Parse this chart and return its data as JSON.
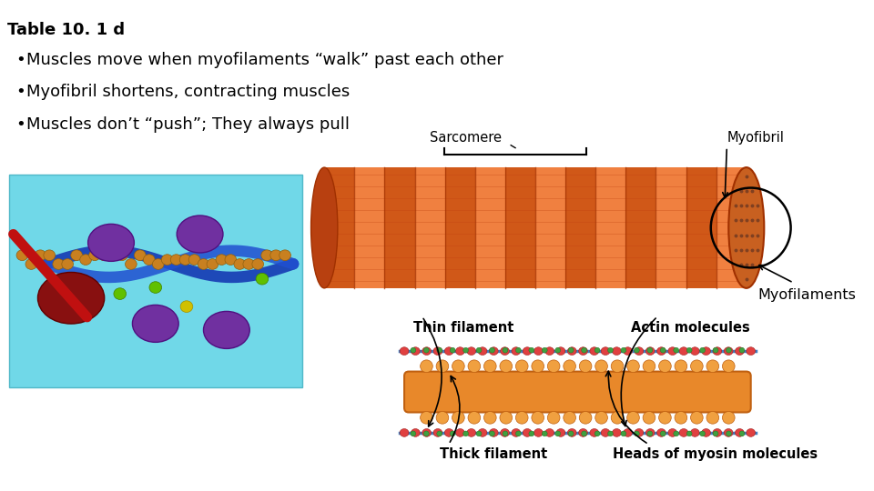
{
  "title": "Table 10. 1 d",
  "bullet1": "Muscles move when myofilaments “walk” past each other",
  "bullet2": "Myofibril shortens, contracting muscles",
  "bullet3": "Muscles don’t “push”; They always pull",
  "label_sarcomere": "Sarcomere",
  "label_myofibril": "Myofibril",
  "label_myofilaments": "Myofilaments",
  "label_thin": "Thin filament",
  "label_thick": "Thick filament",
  "label_actin": "Actin molecules",
  "label_myosin": "Heads of myosin molecules",
  "bg_color": "#ffffff",
  "text_color": "#000000",
  "title_fontsize": 13,
  "bullet_fontsize": 13,
  "label_fontsize": 10.5
}
